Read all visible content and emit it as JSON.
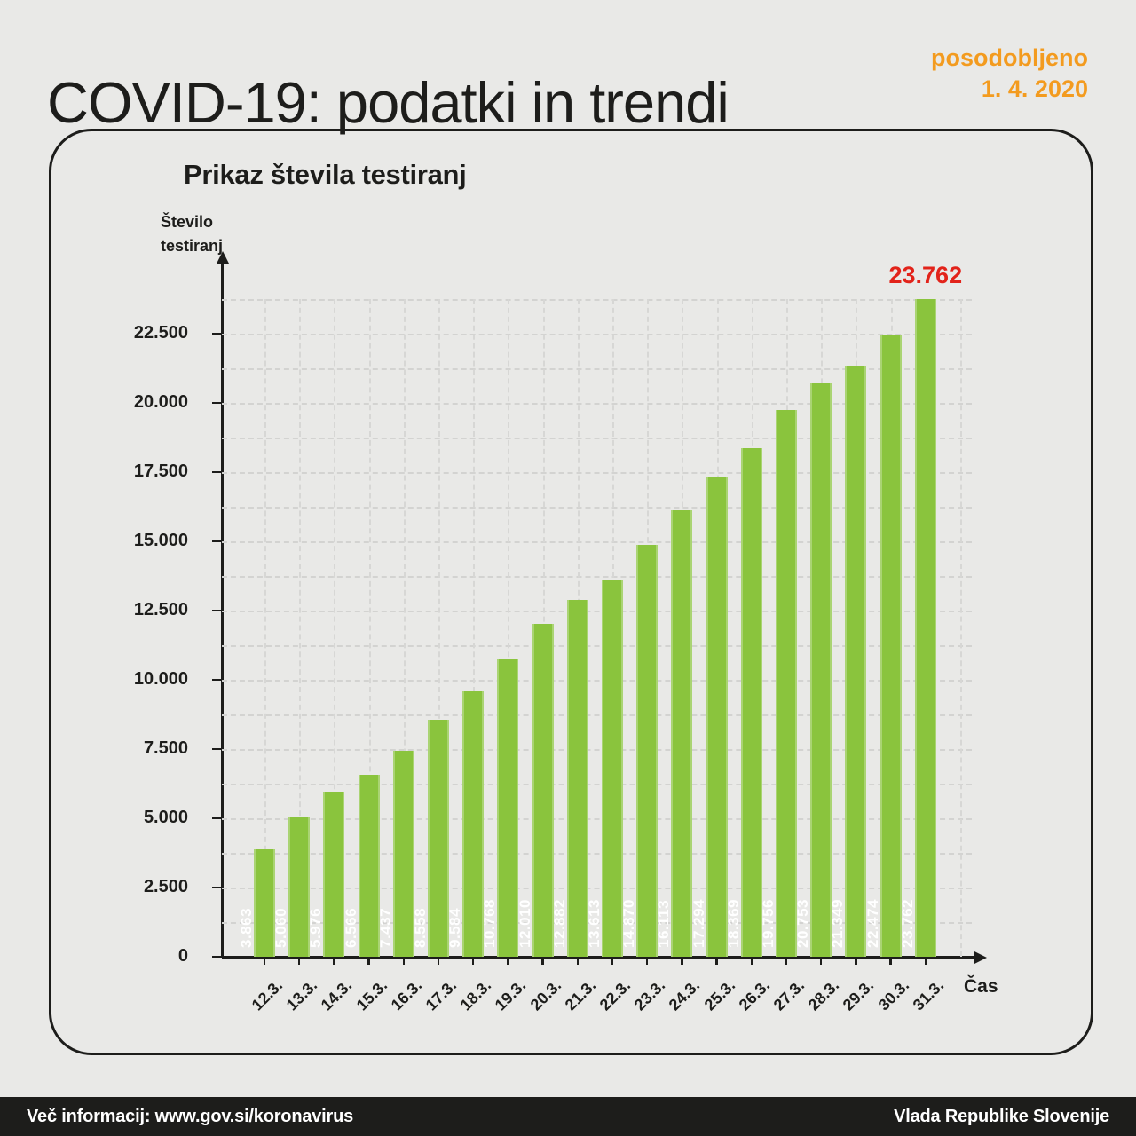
{
  "header": {
    "title": "COVID-19: podatki in trendi",
    "updated_label": "posodobljeno",
    "updated_date": "1. 4. 2020"
  },
  "chart_data": {
    "type": "bar",
    "title": "Prikaz števila testiranj",
    "ylabel": "Število testiranj",
    "ylabel_lines": [
      "Število",
      "testiranj"
    ],
    "xlabel": "Čas",
    "categories": [
      "12.3.",
      "13.3.",
      "14.3.",
      "15.3.",
      "16.3.",
      "17.3.",
      "18.3.",
      "19.3.",
      "20.3.",
      "21.3.",
      "22.3.",
      "23.3.",
      "24.3.",
      "25.3.",
      "26.3.",
      "27.3.",
      "28.3.",
      "29.3.",
      "30.3.",
      "31.3."
    ],
    "values": [
      3863,
      5060,
      5976,
      6566,
      7437,
      8558,
      9584,
      10768,
      12010,
      12882,
      13613,
      14870,
      16113,
      17294,
      18369,
      19756,
      20753,
      21349,
      22474,
      23762
    ],
    "value_labels": [
      "3.863",
      "5.060",
      "5.976",
      "6.566",
      "7.437",
      "8.558",
      "9.584",
      "10.768",
      "12.010",
      "12.882",
      "13.613",
      "14.870",
      "16.113",
      "17.294",
      "18.369",
      "19.756",
      "20.753",
      "21.349",
      "22.474",
      "23.762"
    ],
    "y_ticks": [
      {
        "value": 0,
        "label": "0"
      },
      {
        "value": 2500,
        "label": "2.500"
      },
      {
        "value": 5000,
        "label": "5.000"
      },
      {
        "value": 7500,
        "label": "7.500"
      },
      {
        "value": 10000,
        "label": "10.000"
      },
      {
        "value": 12500,
        "label": "12.500"
      },
      {
        "value": 15000,
        "label": "15.000"
      },
      {
        "value": 17500,
        "label": "17.500"
      },
      {
        "value": 20000,
        "label": "20.000"
      },
      {
        "value": 22500,
        "label": "22.500"
      }
    ],
    "ylim": [
      0,
      25000
    ],
    "grid": true,
    "legend_position": "none",
    "annotation": {
      "text": "23.762"
    },
    "bar_color": "#8ac43d"
  },
  "footer": {
    "left": "Več informacij: www.gov.si/koronavirus",
    "right": "Vlada Republike Slovenije"
  },
  "colors": {
    "background": "#e9e9e7",
    "accent_orange": "#f39b1f",
    "bar_green": "#8ac43d",
    "annotation_red": "#e2231a",
    "text_dark": "#1d1d1b",
    "footer_bg": "#1d1d1b",
    "grid": "#d3d3d1"
  }
}
